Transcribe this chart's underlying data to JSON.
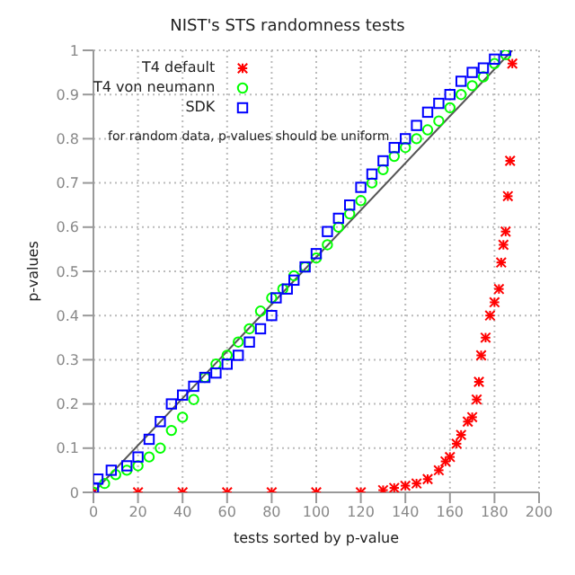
{
  "chart_data": {
    "type": "scatter",
    "title": "NIST's STS randomness tests",
    "xlabel": "tests sorted by p-value",
    "ylabel": "p-values",
    "annotations": [
      "for random data, p-values should be uniform"
    ],
    "xlim": [
      0,
      200
    ],
    "xticks": [
      0,
      20,
      40,
      60,
      80,
      100,
      120,
      140,
      160,
      180,
      200
    ],
    "ylim": [
      0,
      1
    ],
    "yticks": [
      0,
      0.1,
      0.2,
      0.3,
      0.4,
      0.5,
      0.6,
      0.7,
      0.8,
      0.9,
      1
    ],
    "grid": true,
    "legend": "top left",
    "series": [
      {
        "name": "T4 default",
        "color": "#ff0000",
        "marker": "cross",
        "x": [
          0,
          20,
          40,
          60,
          80,
          100,
          120,
          130,
          135,
          140,
          145,
          150,
          155,
          158,
          160,
          163,
          165,
          168,
          170,
          172,
          173,
          174,
          176,
          178,
          180,
          182,
          183,
          184,
          185,
          186,
          187,
          188
        ],
        "values": [
          0,
          0,
          0,
          0,
          0,
          0,
          0,
          0.005,
          0.01,
          0.015,
          0.02,
          0.03,
          0.05,
          0.07,
          0.08,
          0.11,
          0.13,
          0.16,
          0.17,
          0.21,
          0.25,
          0.31,
          0.35,
          0.4,
          0.43,
          0.46,
          0.52,
          0.56,
          0.59,
          0.67,
          0.75,
          0.97
        ]
      },
      {
        "name": "T4 von neumann",
        "color": "#00ff00",
        "marker": "circle",
        "x": [
          0,
          5,
          10,
          15,
          20,
          25,
          30,
          35,
          40,
          45,
          50,
          55,
          60,
          65,
          70,
          75,
          80,
          85,
          90,
          95,
          100,
          105,
          110,
          115,
          120,
          125,
          130,
          135,
          140,
          145,
          150,
          155,
          160,
          165,
          170,
          175,
          180,
          185
        ],
        "values": [
          0,
          0.02,
          0.04,
          0.05,
          0.06,
          0.08,
          0.1,
          0.14,
          0.17,
          0.21,
          0.26,
          0.29,
          0.31,
          0.34,
          0.37,
          0.41,
          0.44,
          0.46,
          0.49,
          0.51,
          0.53,
          0.56,
          0.6,
          0.63,
          0.66,
          0.7,
          0.73,
          0.76,
          0.78,
          0.8,
          0.82,
          0.84,
          0.87,
          0.9,
          0.92,
          0.94,
          0.97,
          0.99
        ]
      },
      {
        "name": "SDK",
        "color": "#0000ff",
        "marker": "square",
        "x": [
          0,
          2,
          8,
          15,
          20,
          25,
          30,
          35,
          40,
          45,
          50,
          55,
          60,
          65,
          70,
          75,
          80,
          82,
          87,
          90,
          95,
          100,
          105,
          110,
          115,
          120,
          125,
          130,
          135,
          140,
          145,
          150,
          155,
          160,
          165,
          170,
          175,
          180,
          185
        ],
        "values": [
          0.01,
          0.03,
          0.05,
          0.06,
          0.08,
          0.12,
          0.16,
          0.2,
          0.22,
          0.24,
          0.26,
          0.27,
          0.29,
          0.31,
          0.34,
          0.37,
          0.4,
          0.44,
          0.46,
          0.48,
          0.51,
          0.54,
          0.59,
          0.62,
          0.65,
          0.69,
          0.72,
          0.75,
          0.78,
          0.8,
          0.83,
          0.86,
          0.88,
          0.9,
          0.93,
          0.95,
          0.96,
          0.98,
          1
        ]
      },
      {
        "type": "line",
        "color": "#555555",
        "x": [
          0,
          188
        ],
        "values": [
          0,
          1
        ]
      }
    ]
  }
}
